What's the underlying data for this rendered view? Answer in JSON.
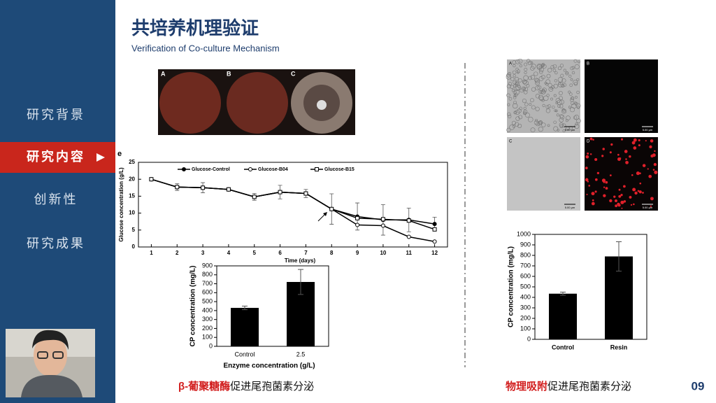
{
  "sidebar": {
    "nav": [
      "研究背景",
      "研究内容",
      "创新性",
      "研究成果"
    ],
    "active": 1
  },
  "header": {
    "title": "共培养机理验证",
    "subtitle": "Verification of Co-culture Mechanism"
  },
  "plates": {
    "labels": [
      "A",
      "B",
      "C"
    ]
  },
  "micrographs": {
    "labels": [
      "A",
      "B",
      "C",
      "D"
    ],
    "scale_label": "5.00 μm"
  },
  "chart_data": [
    {
      "type": "line",
      "panel_label": "e",
      "x": [
        1,
        2,
        3,
        4,
        5,
        6,
        7,
        8,
        9,
        10,
        11,
        12
      ],
      "xlim": [
        0.5,
        12.5
      ],
      "xticks": [
        1,
        2,
        3,
        4,
        5,
        6,
        7,
        8,
        9,
        10,
        11,
        12
      ],
      "ylim": [
        0,
        25
      ],
      "yticks": [
        0,
        5,
        10,
        15,
        20,
        25
      ],
      "x_label": "Time (days)",
      "y_label": "Glucose concentration  (g/L)",
      "series": [
        {
          "name": "Glucose-Control",
          "color": "#000000",
          "marker": "circle-filled",
          "values": [
            20,
            17.7,
            17.5,
            17,
            14.8,
            16.2,
            15.8,
            11.2,
            9,
            8,
            8,
            6.8
          ],
          "errors": [
            0,
            1,
            1.5,
            0.5,
            1,
            2,
            1.2,
            4.5,
            4,
            4.5,
            3.5,
            2
          ]
        },
        {
          "name": "Glucose-B04",
          "color": "#000000",
          "marker": "circle-open",
          "values": [
            20,
            17.7,
            17.5,
            17,
            14.8,
            16.2,
            15.8,
            11.2,
            6.5,
            6.3,
            3,
            1.6
          ]
        },
        {
          "name": "Glucose-B15",
          "color": "#000000",
          "marker": "square-open",
          "values": [
            20,
            17.7,
            17.5,
            17,
            14.8,
            16.2,
            15.8,
            11.2,
            8.5,
            8.2,
            7.8,
            5.2
          ]
        }
      ]
    },
    {
      "type": "bar",
      "categories": [
        "Control",
        "2.5"
      ],
      "values": [
        430,
        720
      ],
      "errors": [
        20,
        140
      ],
      "color": "#000000",
      "ylim": [
        0,
        900
      ],
      "yticks": [
        0,
        100,
        200,
        300,
        400,
        500,
        600,
        700,
        800,
        900
      ],
      "x_label": "Enzyme concentration (g/L)",
      "y_label": "CP concentration (mg/L)"
    },
    {
      "type": "bar",
      "categories": [
        "Control",
        "Resin"
      ],
      "values": [
        435,
        790
      ],
      "errors": [
        15,
        140
      ],
      "color": "#000000",
      "ylim": [
        0,
        1000
      ],
      "yticks": [
        0,
        100,
        200,
        300,
        400,
        500,
        600,
        700,
        800,
        900,
        1000
      ],
      "y_label": "CP concentration (mg/L)"
    }
  ],
  "captions": [
    {
      "highlight": "β-葡聚糖酶",
      "text": "促进尾孢菌素分泌"
    },
    {
      "highlight": "物理吸附",
      "text": "促进尾孢菌素分泌"
    }
  ],
  "page_number": "09"
}
